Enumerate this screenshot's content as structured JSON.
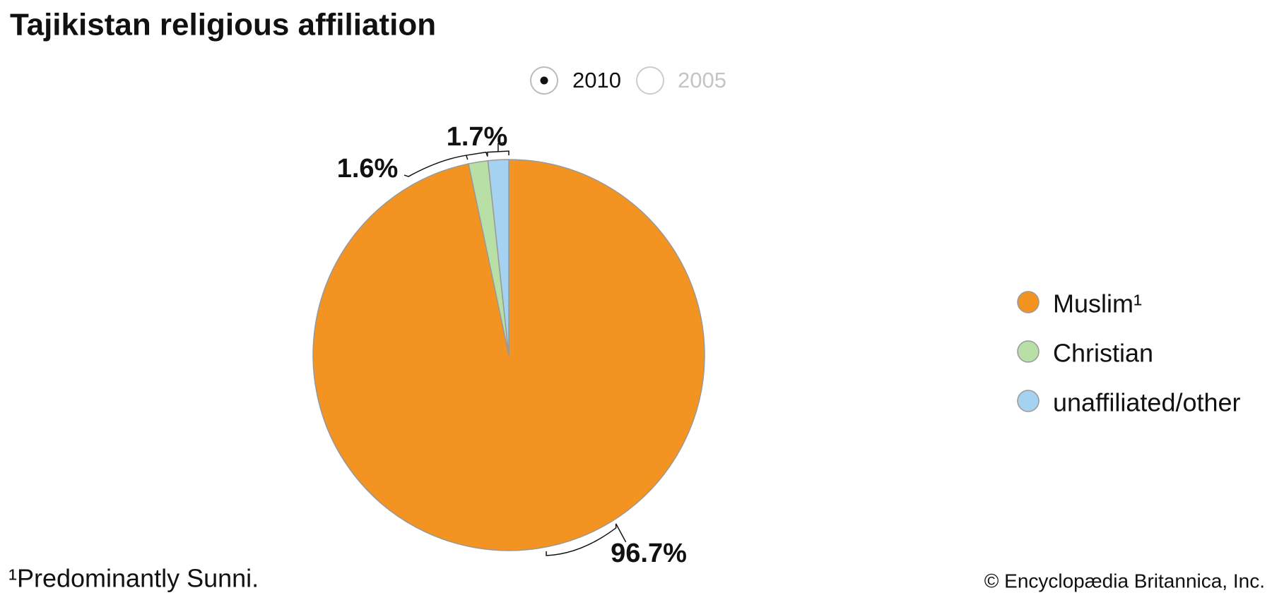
{
  "chart_data": {
    "type": "pie",
    "title": "Tajikistan religious affiliation",
    "options": [
      "2010",
      "2005"
    ],
    "categories": [
      "Muslim¹",
      "Christian",
      "unaffiliated/other"
    ],
    "values": [
      96.7,
      1.6,
      1.7
    ],
    "value_labels": [
      "96.7%",
      "1.6%",
      "1.7%"
    ],
    "colors": [
      "#f39322",
      "#b7dfa6",
      "#a4d2f0"
    ],
    "footnote": "¹Predominantly Sunni.",
    "credit": "© Encyclopædia Britannica, Inc."
  }
}
